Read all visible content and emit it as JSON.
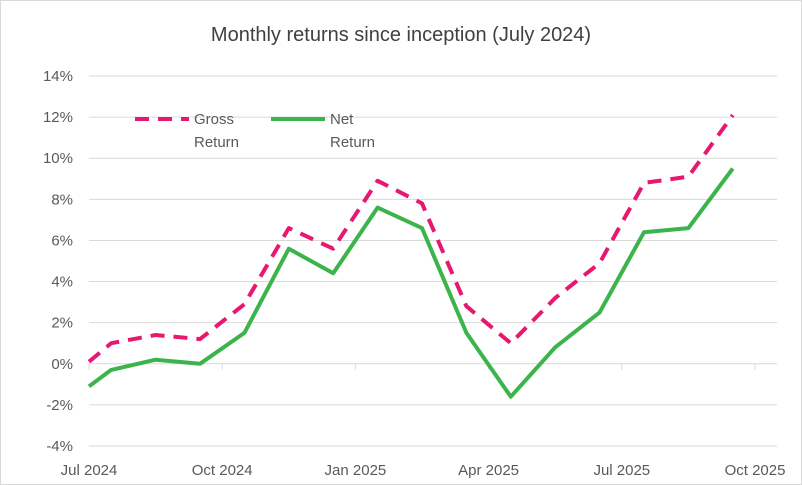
{
  "chart_data": {
    "type": "line",
    "title": "Monthly returns since inception (July 2024)",
    "xlabel": "",
    "ylabel": "",
    "x_tick_labels": [
      "Jul 2024",
      "Oct 2024",
      "Jan 2025",
      "Apr 2025",
      "Jul 2025",
      "Oct 2025"
    ],
    "y_tick_labels": [
      "14%",
      "12%",
      "10%",
      "8%",
      "6%",
      "4%",
      "2%",
      "0%",
      "-2%",
      "-4%"
    ],
    "ylim": [
      -4,
      14
    ],
    "y_step": 2,
    "grid": true,
    "legend_placement": "top-left",
    "series": [
      {
        "name": [
          "Gross",
          "Return"
        ],
        "color": "#e8176f",
        "dash": true,
        "x": [
          0,
          0.5,
          1.5,
          2.5,
          3.5,
          4.5,
          5.5,
          6.5,
          7.5,
          8.5,
          9.5,
          10.5,
          11.5,
          12.5,
          13.5,
          14.5
        ],
        "values": [
          0.1,
          1.0,
          1.4,
          1.2,
          2.9,
          6.6,
          5.6,
          8.9,
          7.8,
          2.8,
          1.0,
          3.2,
          4.9,
          8.8,
          9.1,
          12.1
        ]
      },
      {
        "name": [
          "Net",
          "Return"
        ],
        "color": "#3cb44b",
        "dash": false,
        "x": [
          0,
          0.5,
          1.5,
          2.5,
          3.5,
          4.5,
          5.5,
          6.5,
          7.5,
          8.5,
          9.5,
          10.5,
          11.5,
          12.5,
          13.5,
          14.5
        ],
        "values": [
          -1.1,
          -0.3,
          0.2,
          0.0,
          1.5,
          5.6,
          4.4,
          7.6,
          6.6,
          1.5,
          -1.6,
          0.8,
          2.5,
          6.4,
          6.6,
          9.5
        ]
      }
    ]
  }
}
